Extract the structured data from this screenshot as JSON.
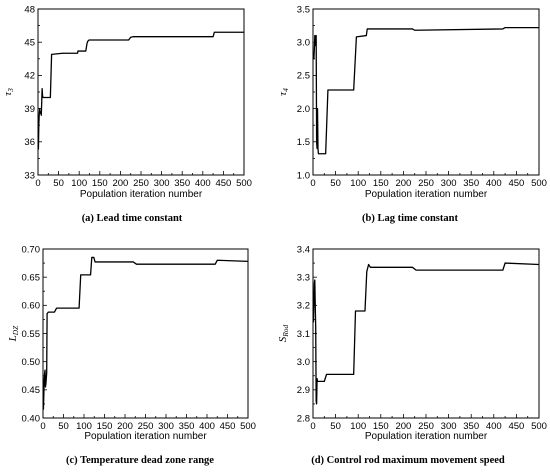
{
  "chart_data": [
    {
      "type": "line",
      "caption": "(a) Lead time constant",
      "ylabel": "τ",
      "ylabel_sub": "3",
      "xlabel": "Population iteration number",
      "xlim": [
        0,
        500
      ],
      "ylim": [
        33,
        48
      ],
      "xticks": [
        "0",
        "50",
        "100",
        "150",
        "200",
        "250",
        "300",
        "350",
        "400",
        "450",
        "500"
      ],
      "yticks": [
        "33",
        "36",
        "39",
        "42",
        "45",
        "48"
      ],
      "ytick_values": [
        33,
        36,
        39,
        42,
        45,
        48
      ],
      "x": [
        1,
        2,
        3,
        4,
        5,
        6,
        8,
        10,
        11,
        12,
        13,
        16,
        24,
        30,
        33,
        60,
        96,
        97,
        116,
        119,
        121,
        124,
        220,
        225,
        232,
        240,
        425,
        428,
        500
      ],
      "y": [
        35.3,
        37.5,
        38.5,
        39.0,
        38.6,
        38.7,
        38.4,
        40.8,
        40.2,
        40.0,
        40.0,
        40.0,
        40.0,
        40.0,
        43.9,
        44.0,
        44.0,
        44.2,
        44.2,
        44.9,
        45.1,
        45.2,
        45.2,
        45.45,
        45.5,
        45.5,
        45.5,
        45.9,
        45.9
      ]
    },
    {
      "type": "line",
      "caption": "(b) Lag time constant",
      "ylabel": "τ",
      "ylabel_sub": "4",
      "xlabel": "Population iteration number",
      "xlim": [
        0,
        500
      ],
      "ylim": [
        1.0,
        3.5
      ],
      "xticks": [
        "0",
        "50",
        "100",
        "150",
        "200",
        "250",
        "300",
        "350",
        "400",
        "450",
        "500"
      ],
      "yticks": [
        "1.0",
        "1.5",
        "2.0",
        "2.5",
        "3.0",
        "3.5"
      ],
      "ytick_values": [
        1.0,
        1.5,
        2.0,
        2.5,
        3.0,
        3.5
      ],
      "x": [
        1,
        2,
        3,
        4,
        5,
        6,
        7,
        8,
        9,
        10,
        11,
        12,
        13,
        28,
        33,
        90,
        96,
        118,
        120,
        125,
        220,
        225,
        420,
        425,
        500
      ],
      "y": [
        2.8,
        2.75,
        2.9,
        3.1,
        3.0,
        2.95,
        3.1,
        1.5,
        1.4,
        2.0,
        1.4,
        1.32,
        1.32,
        1.32,
        2.28,
        2.28,
        3.08,
        3.1,
        3.2,
        3.2,
        3.2,
        3.18,
        3.2,
        3.22,
        3.22
      ]
    },
    {
      "type": "line",
      "caption": "(c) Temperature dead zone range",
      "ylabel": "L",
      "ylabel_sub": "DZ",
      "xlabel": "Population iteration number",
      "xlim": [
        0,
        500
      ],
      "ylim": [
        0.4,
        0.7
      ],
      "xticks": [
        "0",
        "50",
        "100",
        "150",
        "200",
        "250",
        "300",
        "350",
        "400",
        "450",
        "500"
      ],
      "yticks": [
        "0.40",
        "0.45",
        "0.50",
        "0.55",
        "0.60",
        "0.65",
        "0.70"
      ],
      "ytick_values": [
        0.4,
        0.45,
        0.5,
        0.55,
        0.6,
        0.65,
        0.7
      ],
      "x": [
        1,
        2,
        3,
        4,
        5,
        6,
        7,
        8,
        9,
        10,
        13,
        28,
        33,
        88,
        92,
        116,
        119,
        124,
        127,
        220,
        228,
        420,
        425,
        500
      ],
      "y": [
        0.415,
        0.44,
        0.47,
        0.48,
        0.485,
        0.455,
        0.46,
        0.47,
        0.48,
        0.585,
        0.588,
        0.588,
        0.595,
        0.595,
        0.654,
        0.654,
        0.685,
        0.685,
        0.677,
        0.677,
        0.673,
        0.673,
        0.68,
        0.678
      ]
    },
    {
      "type": "line",
      "caption": "(d) Control rod maximum movement speed",
      "ylabel": "S",
      "ylabel_sub": "Rod",
      "xlabel": "Population iteration number",
      "xlim": [
        0,
        500
      ],
      "ylim": [
        2.8,
        3.4
      ],
      "xticks": [
        "0",
        "50",
        "100",
        "150",
        "200",
        "250",
        "300",
        "350",
        "400",
        "450",
        "500"
      ],
      "yticks": [
        "2.8",
        "2.9",
        "3.0",
        "3.1",
        "3.2",
        "3.3",
        "3.4"
      ],
      "ytick_values": [
        2.8,
        2.9,
        3.0,
        3.1,
        3.2,
        3.3,
        3.4
      ],
      "x": [
        1,
        2,
        3,
        4,
        5,
        6,
        7,
        8,
        9,
        10,
        12,
        25,
        30,
        90,
        94,
        115,
        119,
        123,
        127,
        220,
        228,
        420,
        425,
        500
      ],
      "y": [
        3.14,
        3.2,
        3.28,
        3.29,
        3.2,
        3.12,
        2.86,
        2.85,
        2.94,
        2.93,
        2.93,
        2.93,
        2.955,
        2.955,
        3.18,
        3.18,
        3.32,
        3.345,
        3.335,
        3.335,
        3.325,
        3.325,
        3.35,
        3.345
      ]
    }
  ]
}
